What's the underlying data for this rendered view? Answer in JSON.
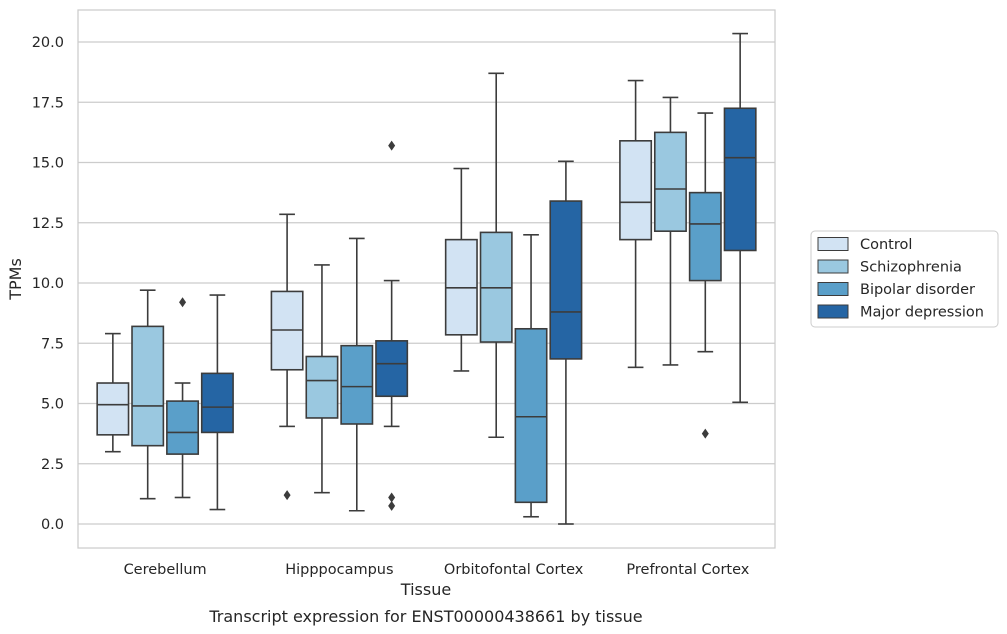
{
  "chart_data": {
    "type": "box",
    "title": "",
    "caption": "Transcript expression for ENST00000438661 by tissue",
    "xlabel": "Tissue",
    "ylabel": "TPMs",
    "ylim": [
      -1.0,
      21.4
    ],
    "yticks": [
      "0.0",
      "2.5",
      "5.0",
      "7.5",
      "10.0",
      "12.5",
      "15.0",
      "17.5",
      "20.0"
    ],
    "grid": "horizontal",
    "legend_position": "right",
    "categories": [
      "Cerebellum",
      "Hipppocampus",
      "Orbitofontal Cortex",
      "Prefrontal Cortex"
    ],
    "series": [
      {
        "name": "Control",
        "color": "#d2e3f3",
        "boxes": [
          {
            "whisker_low": 3.0,
            "q1": 3.7,
            "median": 4.95,
            "q3": 5.85,
            "whisker_high": 7.9,
            "outliers": []
          },
          {
            "whisker_low": 4.05,
            "q1": 6.4,
            "median": 8.05,
            "q3": 9.65,
            "whisker_high": 12.85,
            "outliers": [
              1.2
            ]
          },
          {
            "whisker_low": 6.35,
            "q1": 7.85,
            "median": 9.8,
            "q3": 11.8,
            "whisker_high": 14.75,
            "outliers": []
          },
          {
            "whisker_low": 6.5,
            "q1": 11.8,
            "median": 13.35,
            "q3": 15.9,
            "whisker_high": 18.4,
            "outliers": []
          }
        ]
      },
      {
        "name": "Schizophrenia",
        "color": "#9ac8e0",
        "boxes": [
          {
            "whisker_low": 1.05,
            "q1": 3.25,
            "median": 4.9,
            "q3": 8.2,
            "whisker_high": 9.7,
            "outliers": []
          },
          {
            "whisker_low": 1.3,
            "q1": 4.4,
            "median": 5.95,
            "q3": 6.95,
            "whisker_high": 10.75,
            "outliers": []
          },
          {
            "whisker_low": 3.6,
            "q1": 7.55,
            "median": 9.8,
            "q3": 12.1,
            "whisker_high": 18.7,
            "outliers": []
          },
          {
            "whisker_low": 6.6,
            "q1": 12.15,
            "median": 13.9,
            "q3": 16.25,
            "whisker_high": 17.7,
            "outliers": []
          }
        ]
      },
      {
        "name": "Bipolar disorder",
        "color": "#5a9fc9",
        "boxes": [
          {
            "whisker_low": 1.1,
            "q1": 2.9,
            "median": 3.8,
            "q3": 5.1,
            "whisker_high": 5.85,
            "outliers": [
              9.2
            ]
          },
          {
            "whisker_low": 0.55,
            "q1": 4.15,
            "median": 5.7,
            "q3": 7.4,
            "whisker_high": 11.85,
            "outliers": []
          },
          {
            "whisker_low": 0.3,
            "q1": 0.9,
            "median": 4.45,
            "q3": 8.1,
            "whisker_high": 12.0,
            "outliers": []
          },
          {
            "whisker_low": 7.15,
            "q1": 10.1,
            "median": 12.45,
            "q3": 13.75,
            "whisker_high": 17.05,
            "outliers": [
              3.75
            ]
          }
        ]
      },
      {
        "name": "Major depression",
        "color": "#2565a4",
        "boxes": [
          {
            "whisker_low": 0.6,
            "q1": 3.8,
            "median": 4.85,
            "q3": 6.25,
            "whisker_high": 9.5,
            "outliers": []
          },
          {
            "whisker_low": 4.05,
            "q1": 5.3,
            "median": 6.65,
            "q3": 7.6,
            "whisker_high": 10.1,
            "outliers": [
              15.7,
              1.1,
              0.75
            ]
          },
          {
            "whisker_low": 0.0,
            "q1": 6.85,
            "median": 8.8,
            "q3": 13.4,
            "whisker_high": 15.05,
            "outliers": []
          },
          {
            "whisker_low": 5.05,
            "q1": 11.35,
            "median": 15.2,
            "q3": 17.25,
            "whisker_high": 20.35,
            "outliers": []
          }
        ]
      }
    ]
  }
}
